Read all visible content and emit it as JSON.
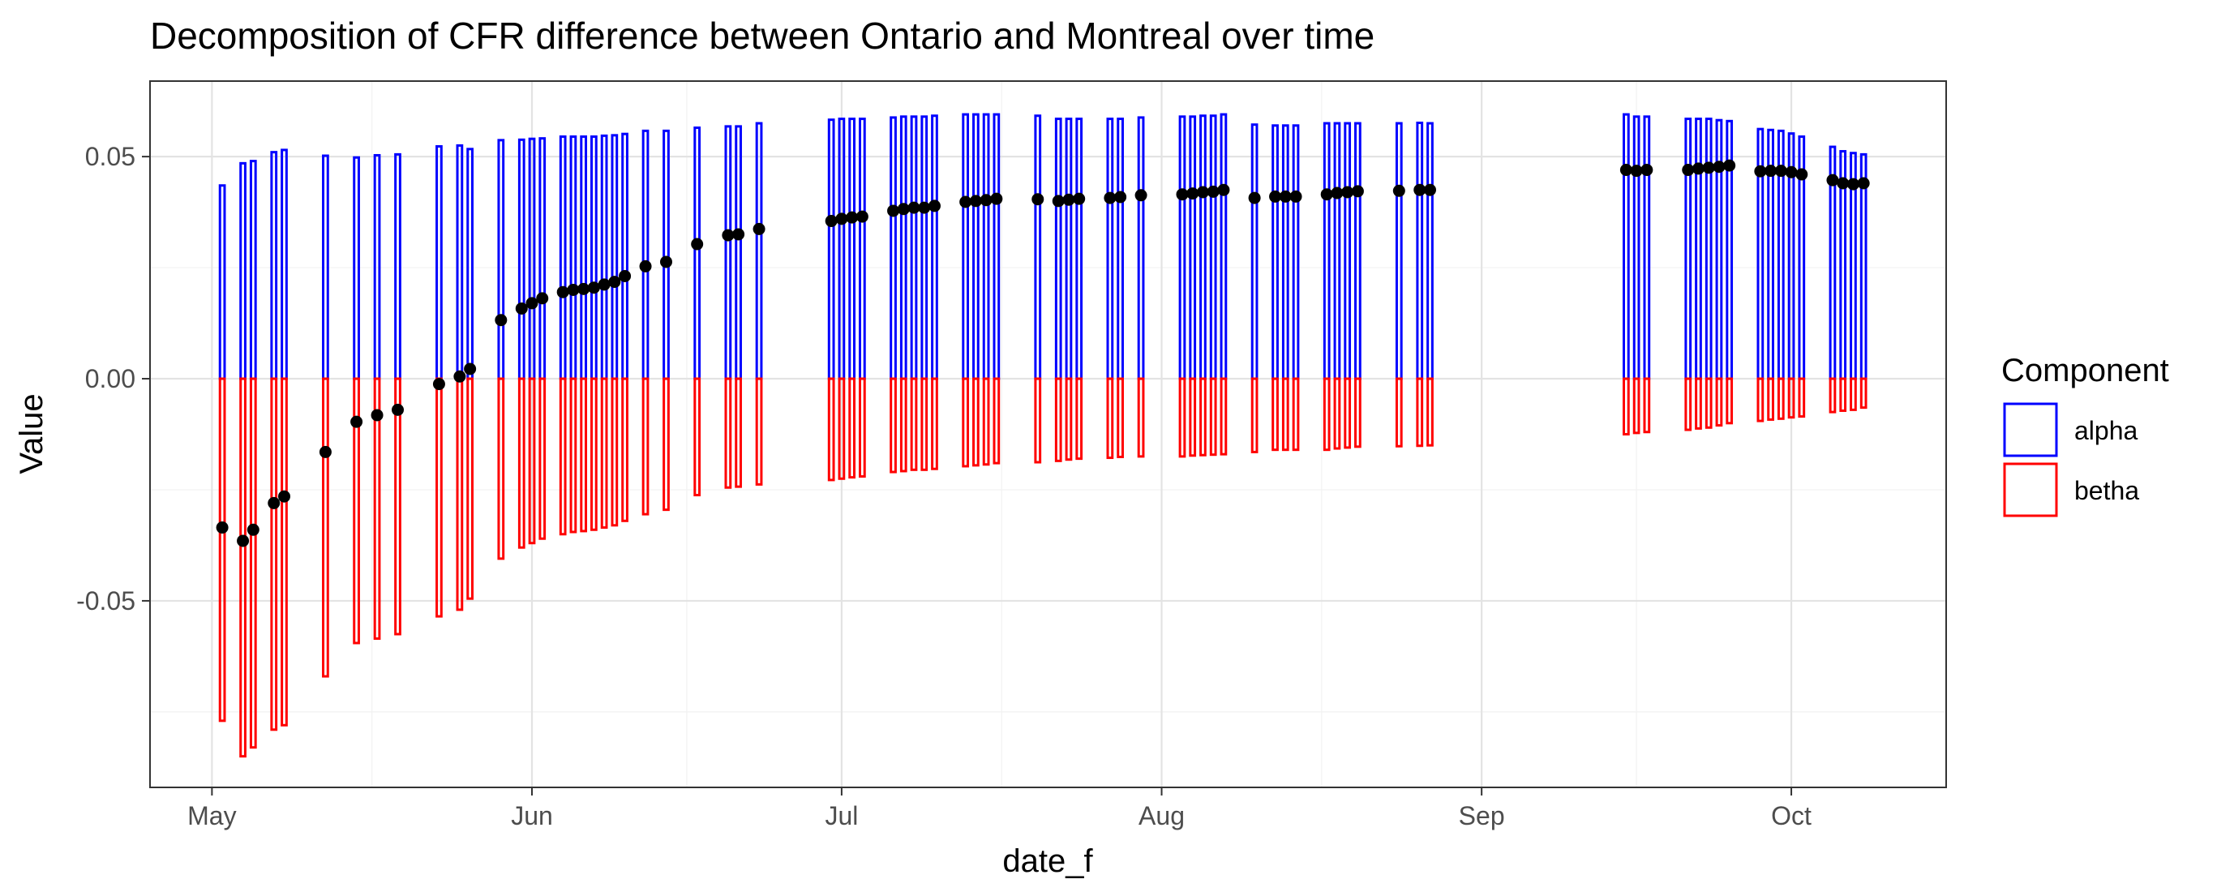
{
  "chart_data": {
    "type": "bar",
    "subtype": "stacked-diverging-with-points",
    "title": "Decomposition of CFR difference between Ontario and Montreal over time",
    "xlabel": "date_f",
    "ylabel": "Value",
    "xlim": [
      "2020-04-25",
      "2020-10-16"
    ],
    "ylim": [
      -0.092,
      0.067
    ],
    "x_ticks": [
      {
        "date": "2020-05-01",
        "label": "May"
      },
      {
        "date": "2020-06-01",
        "label": "Jun"
      },
      {
        "date": "2020-07-01",
        "label": "Jul"
      },
      {
        "date": "2020-08-01",
        "label": "Aug"
      },
      {
        "date": "2020-09-01",
        "label": "Sep"
      },
      {
        "date": "2020-10-01",
        "label": "Oct"
      }
    ],
    "y_ticks": [
      {
        "value": 0.05,
        "label": "0.05"
      },
      {
        "value": 0.0,
        "label": "0.00"
      },
      {
        "value": -0.05,
        "label": "-0.05"
      }
    ],
    "grid": true,
    "legend": {
      "title": "Component",
      "position": "right",
      "entries": [
        {
          "name": "alpha",
          "color": "#0000ff"
        },
        {
          "name": "betha",
          "color": "#ff0000"
        }
      ]
    },
    "point_color": "#000000",
    "x": [
      "2020-05-02",
      "2020-05-04",
      "2020-05-05",
      "2020-05-07",
      "2020-05-08",
      "2020-05-12",
      "2020-05-15",
      "2020-05-17",
      "2020-05-19",
      "2020-05-23",
      "2020-05-25",
      "2020-05-26",
      "2020-05-29",
      "2020-05-31",
      "2020-06-01",
      "2020-06-02",
      "2020-06-04",
      "2020-06-05",
      "2020-06-06",
      "2020-06-07",
      "2020-06-08",
      "2020-06-09",
      "2020-06-10",
      "2020-06-12",
      "2020-06-14",
      "2020-06-17",
      "2020-06-20",
      "2020-06-21",
      "2020-06-23",
      "2020-06-30",
      "2020-07-01",
      "2020-07-02",
      "2020-07-03",
      "2020-07-06",
      "2020-07-07",
      "2020-07-08",
      "2020-07-09",
      "2020-07-10",
      "2020-07-13",
      "2020-07-14",
      "2020-07-15",
      "2020-07-16",
      "2020-07-20",
      "2020-07-22",
      "2020-07-23",
      "2020-07-24",
      "2020-07-27",
      "2020-07-28",
      "2020-07-30",
      "2020-08-03",
      "2020-08-04",
      "2020-08-05",
      "2020-08-06",
      "2020-08-07",
      "2020-08-10",
      "2020-08-12",
      "2020-08-13",
      "2020-08-14",
      "2020-08-17",
      "2020-08-18",
      "2020-08-19",
      "2020-08-20",
      "2020-08-24",
      "2020-08-26",
      "2020-08-27",
      "2020-09-15",
      "2020-09-16",
      "2020-09-17",
      "2020-09-21",
      "2020-09-22",
      "2020-09-23",
      "2020-09-24",
      "2020-09-25",
      "2020-09-28",
      "2020-09-29",
      "2020-09-30",
      "2020-10-01",
      "2020-10-02",
      "2020-10-05",
      "2020-10-06",
      "2020-10-07",
      "2020-10-08"
    ],
    "series": [
      {
        "name": "alpha",
        "values": [
          0.0435,
          0.0485,
          0.049,
          0.051,
          0.0515,
          0.0502,
          0.0498,
          0.0503,
          0.0505,
          0.0523,
          0.0525,
          0.0517,
          0.0537,
          0.0538,
          0.054,
          0.0541,
          0.0545,
          0.0545,
          0.0545,
          0.0545,
          0.0547,
          0.0548,
          0.0551,
          0.0558,
          0.0558,
          0.0565,
          0.0568,
          0.0568,
          0.0575,
          0.0583,
          0.0585,
          0.0585,
          0.0585,
          0.0588,
          0.059,
          0.059,
          0.059,
          0.0592,
          0.0595,
          0.0595,
          0.0595,
          0.0595,
          0.0592,
          0.0585,
          0.0585,
          0.0585,
          0.0585,
          0.0585,
          0.0588,
          0.059,
          0.059,
          0.0592,
          0.0592,
          0.0595,
          0.0572,
          0.057,
          0.057,
          0.057,
          0.0575,
          0.0575,
          0.0575,
          0.0575,
          0.0575,
          0.0576,
          0.0575,
          0.0595,
          0.059,
          0.059,
          0.0585,
          0.0585,
          0.0585,
          0.0582,
          0.058,
          0.0562,
          0.056,
          0.0558,
          0.0552,
          0.0545,
          0.0522,
          0.0512,
          0.0508,
          0.0505
        ]
      },
      {
        "name": "betha",
        "values": [
          -0.077,
          -0.085,
          -0.083,
          -0.079,
          -0.078,
          -0.067,
          -0.0595,
          -0.0585,
          -0.0575,
          -0.0535,
          -0.052,
          -0.0495,
          -0.0405,
          -0.038,
          -0.037,
          -0.036,
          -0.035,
          -0.0345,
          -0.0343,
          -0.034,
          -0.0335,
          -0.033,
          -0.032,
          -0.0305,
          -0.0295,
          -0.0262,
          -0.0245,
          -0.0243,
          -0.0238,
          -0.0228,
          -0.0225,
          -0.0222,
          -0.022,
          -0.021,
          -0.0208,
          -0.0205,
          -0.0205,
          -0.0203,
          -0.0197,
          -0.0195,
          -0.0193,
          -0.019,
          -0.0188,
          -0.0185,
          -0.0182,
          -0.018,
          -0.0178,
          -0.0176,
          -0.0175,
          -0.0175,
          -0.0173,
          -0.0172,
          -0.0171,
          -0.017,
          -0.0165,
          -0.016,
          -0.016,
          -0.016,
          -0.016,
          -0.0157,
          -0.0155,
          -0.0153,
          -0.0152,
          -0.0151,
          -0.015,
          -0.0125,
          -0.0122,
          -0.012,
          -0.0115,
          -0.0112,
          -0.011,
          -0.0105,
          -0.01,
          -0.0095,
          -0.0092,
          -0.009,
          -0.0087,
          -0.0085,
          -0.0075,
          -0.0072,
          -0.007,
          -0.0065
        ]
      },
      {
        "name": "",
        "kind": "point",
        "values": [
          -0.0335,
          -0.0365,
          -0.034,
          -0.028,
          -0.0265,
          -0.0165,
          -0.0097,
          -0.0082,
          -0.007,
          -0.0012,
          0.0005,
          0.0022,
          0.0132,
          0.0158,
          0.017,
          0.0181,
          0.0195,
          0.02,
          0.0202,
          0.0205,
          0.0212,
          0.0218,
          0.0231,
          0.0253,
          0.0263,
          0.0303,
          0.0323,
          0.0325,
          0.0337,
          0.0355,
          0.036,
          0.0363,
          0.0365,
          0.0378,
          0.0382,
          0.0385,
          0.0385,
          0.0389,
          0.0398,
          0.04,
          0.0402,
          0.0405,
          0.0404,
          0.04,
          0.0403,
          0.0405,
          0.0407,
          0.0409,
          0.0413,
          0.0415,
          0.0417,
          0.042,
          0.0421,
          0.0425,
          0.0407,
          0.041,
          0.041,
          0.041,
          0.0415,
          0.0418,
          0.042,
          0.0422,
          0.0423,
          0.0425,
          0.0425,
          0.047,
          0.0468,
          0.047,
          0.047,
          0.0473,
          0.0475,
          0.0477,
          0.048,
          0.0467,
          0.0468,
          0.0468,
          0.0465,
          0.046,
          0.0447,
          0.044,
          0.0438,
          0.044
        ]
      }
    ]
  }
}
